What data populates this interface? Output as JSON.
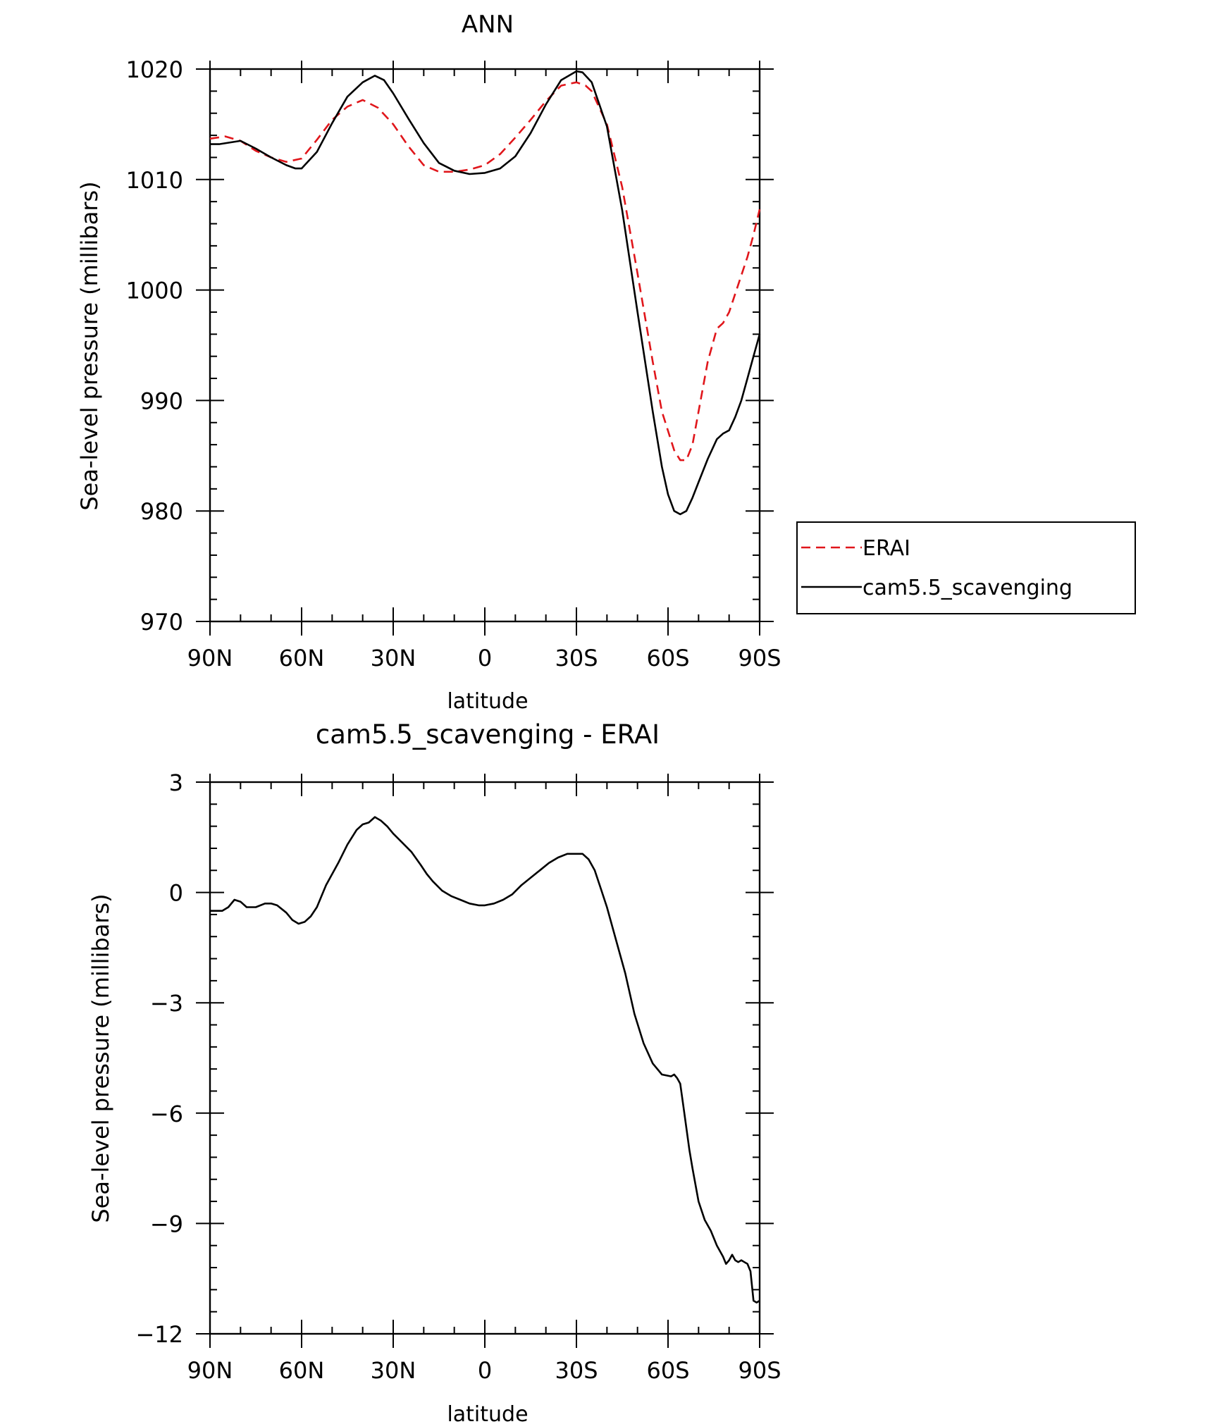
{
  "colors": {
    "erai": "#e0161b",
    "model": "#000000",
    "axis": "#000000",
    "background": "#ffffff"
  },
  "chart_data": [
    {
      "type": "line",
      "title": "ANN",
      "xlabel": "latitude",
      "ylabel": "Sea-level pressure (millibars)",
      "x_ticks": [
        {
          "value": 90,
          "label": "90N"
        },
        {
          "value": 60,
          "label": "60N"
        },
        {
          "value": 30,
          "label": "30N"
        },
        {
          "value": 0,
          "label": "0"
        },
        {
          "value": -30,
          "label": "30S"
        },
        {
          "value": -60,
          "label": "60S"
        },
        {
          "value": -90,
          "label": "90S"
        }
      ],
      "y_ticks": [
        970,
        980,
        990,
        1000,
        1010,
        1020
      ],
      "xlim": [
        90,
        -90
      ],
      "ylim": [
        970,
        1020
      ],
      "grid": false,
      "legend": {
        "placement": "outside-right",
        "entries": [
          "ERAI",
          "cam5.5_scavenging"
        ]
      },
      "series": [
        {
          "name": "ERAI",
          "style": "dashed",
          "color": "#e0161b",
          "x": [
            90,
            85,
            80,
            75,
            70,
            65,
            60,
            55,
            50,
            45,
            40,
            35,
            30,
            25,
            20,
            15,
            10,
            5,
            0,
            -5,
            -10,
            -15,
            -20,
            -25,
            -30,
            -33,
            -35,
            -40,
            -45,
            -50,
            -55,
            -58,
            -62,
            -64,
            -66,
            -68,
            -70,
            -73,
            -76,
            -78,
            -80,
            -83,
            -86,
            -88,
            -90
          ],
          "y": [
            1013.7,
            1013.9,
            1013.5,
            1012.6,
            1012.0,
            1011.6,
            1011.9,
            1013.6,
            1015.4,
            1016.6,
            1017.2,
            1016.5,
            1015.0,
            1013.0,
            1011.3,
            1010.7,
            1010.7,
            1010.9,
            1011.3,
            1012.3,
            1013.8,
            1015.4,
            1017.1,
            1018.5,
            1018.8,
            1018.5,
            1018.0,
            1015.0,
            1009.3,
            1001.5,
            993.5,
            989.0,
            985.5,
            984.6,
            984.6,
            986.0,
            989.0,
            993.5,
            996.5,
            997.0,
            998.0,
            1000.5,
            1003.0,
            1005.0,
            1007.3
          ]
        },
        {
          "name": "cam5.5_scavenging",
          "style": "solid",
          "color": "#000000",
          "x": [
            90,
            87,
            80,
            75,
            70,
            65,
            62,
            60,
            55,
            50,
            45,
            40,
            36,
            33,
            30,
            25,
            20,
            15,
            10,
            5,
            0,
            -5,
            -10,
            -15,
            -20,
            -25,
            -30,
            -32,
            -35,
            -40,
            -45,
            -50,
            -55,
            -58,
            -60,
            -62,
            -64,
            -66,
            -68,
            -70,
            -73,
            -76,
            -78,
            -80,
            -82,
            -84,
            -86,
            -88,
            -90
          ],
          "y": [
            1013.2,
            1013.2,
            1013.5,
            1012.8,
            1012.0,
            1011.3,
            1011.0,
            1011.0,
            1012.5,
            1015.1,
            1017.5,
            1018.8,
            1019.4,
            1019.0,
            1017.8,
            1015.5,
            1013.3,
            1011.5,
            1010.8,
            1010.5,
            1010.6,
            1011.0,
            1012.1,
            1014.2,
            1016.8,
            1019.0,
            1019.8,
            1019.7,
            1018.8,
            1014.8,
            1007.2,
            998.0,
            989.0,
            984.0,
            981.5,
            980.0,
            979.7,
            980.0,
            981.2,
            982.6,
            984.7,
            986.5,
            987.0,
            987.3,
            988.5,
            990.0,
            992.0,
            994.0,
            996.0
          ]
        }
      ]
    },
    {
      "type": "line",
      "title": "cam5.5_scavenging - ERAI",
      "xlabel": "latitude",
      "ylabel": "Sea-level pressure (millibars)",
      "x_ticks": [
        {
          "value": 90,
          "label": "90N"
        },
        {
          "value": 60,
          "label": "60N"
        },
        {
          "value": 30,
          "label": "30N"
        },
        {
          "value": 0,
          "label": "0"
        },
        {
          "value": -30,
          "label": "30S"
        },
        {
          "value": -60,
          "label": "60S"
        },
        {
          "value": -90,
          "label": "90S"
        }
      ],
      "y_ticks": [
        {
          "value": 3,
          "label": "3"
        },
        {
          "value": 0,
          "label": "0"
        },
        {
          "value": -3,
          "label": "−3"
        },
        {
          "value": -6,
          "label": "−6"
        },
        {
          "value": -9,
          "label": "−9"
        },
        {
          "value": -12,
          "label": "−12"
        }
      ],
      "xlim": [
        90,
        -90
      ],
      "ylim": [
        -12,
        3
      ],
      "grid": false,
      "series": [
        {
          "style": "solid",
          "color": "#000000",
          "x": [
            90,
            86,
            84,
            82,
            80,
            78,
            75,
            72,
            70,
            68,
            65,
            63,
            61,
            59,
            57,
            55,
            52,
            48,
            45,
            42,
            40,
            38,
            36,
            35,
            34,
            32,
            30,
            27,
            24,
            21,
            19,
            17,
            14,
            11,
            8,
            5,
            2,
            0,
            -3,
            -6,
            -9,
            -12,
            -15,
            -18,
            -21,
            -24,
            -27,
            -30,
            -32,
            -34,
            -36,
            -38,
            -40,
            -43,
            -46,
            -49,
            -52,
            -55,
            -58,
            -61,
            -62,
            -63,
            -64,
            -65,
            -66,
            -67,
            -68,
            -70,
            -72,
            -74,
            -76,
            -78,
            -79,
            -80,
            -81,
            -82,
            -83,
            -84,
            -85,
            -86,
            -87,
            -88,
            -89,
            -90
          ],
          "y": [
            -0.5,
            -0.5,
            -0.4,
            -0.2,
            -0.25,
            -0.4,
            -0.4,
            -0.3,
            -0.3,
            -0.35,
            -0.55,
            -0.75,
            -0.85,
            -0.8,
            -0.65,
            -0.4,
            0.2,
            0.8,
            1.3,
            1.7,
            1.85,
            1.9,
            2.05,
            2.0,
            1.95,
            1.8,
            1.6,
            1.35,
            1.1,
            0.75,
            0.5,
            0.3,
            0.05,
            -0.1,
            -0.2,
            -0.3,
            -0.35,
            -0.35,
            -0.3,
            -0.2,
            -0.05,
            0.2,
            0.4,
            0.6,
            0.8,
            0.95,
            1.05,
            1.05,
            1.05,
            0.9,
            0.6,
            0.1,
            -0.4,
            -1.3,
            -2.2,
            -3.3,
            -4.1,
            -4.65,
            -4.95,
            -5.0,
            -4.95,
            -5.05,
            -5.2,
            -5.8,
            -6.4,
            -7.0,
            -7.5,
            -8.4,
            -8.9,
            -9.2,
            -9.6,
            -9.9,
            -10.1,
            -10.0,
            -9.85,
            -10.0,
            -10.05,
            -10.0,
            -10.05,
            -10.1,
            -10.3,
            -11.1,
            -11.15,
            -11.1
          ]
        }
      ]
    }
  ]
}
